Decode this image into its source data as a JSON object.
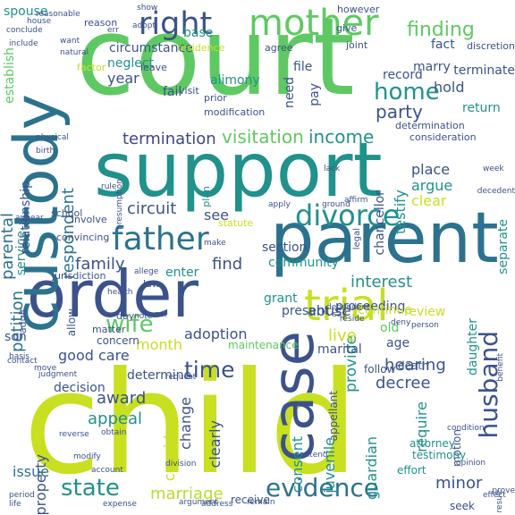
{
  "palette": {
    "p1": "#440154",
    "p2": "#3b528b",
    "p3": "#21918c",
    "p4": "#5ec962",
    "p5": "#b5de2b",
    "p6": "#c8e020",
    "p7": "#2c728e",
    "p8": "#414487"
  },
  "words": [
    {
      "text": "child",
      "color": "#c8e020"
    },
    {
      "text": "court",
      "color": "#5ec962"
    },
    {
      "text": "support",
      "color": "#21918c"
    },
    {
      "text": "parent",
      "color": "#2c728e"
    },
    {
      "text": "order",
      "color": "#3b528b"
    },
    {
      "text": "custody",
      "color": "#2c728e"
    },
    {
      "text": "case",
      "color": "#3b528b"
    },
    {
      "text": "trial",
      "color": "#c8e020"
    },
    {
      "text": "mother",
      "color": "#5ec962"
    },
    {
      "text": "right",
      "color": "#3b528b"
    },
    {
      "text": "father",
      "color": "#2c728e"
    },
    {
      "text": "divorce",
      "color": "#21918c"
    },
    {
      "text": "evidence",
      "color": "#2c728e"
    },
    {
      "text": "husband",
      "color": "#3b528b"
    },
    {
      "text": "wife",
      "color": "#5ec962"
    },
    {
      "text": "home",
      "color": "#21918c"
    },
    {
      "text": "state",
      "color": "#21918c"
    },
    {
      "text": "time",
      "color": "#3b528b"
    },
    {
      "text": "finding",
      "color": "#5ec962"
    },
    {
      "text": "income",
      "color": "#21918c"
    },
    {
      "text": "party",
      "color": "#3b528b"
    },
    {
      "text": "visitation",
      "color": "#5ec962"
    },
    {
      "text": "termination",
      "color": "#414487"
    },
    {
      "text": "petition",
      "color": "#2c728e"
    },
    {
      "text": "parental",
      "color": "#2c728e"
    },
    {
      "text": "respondent",
      "color": "#2c728e"
    },
    {
      "text": "family",
      "color": "#3b528b"
    },
    {
      "text": "marriage",
      "color": "#b5de2b"
    },
    {
      "text": "hearing",
      "color": "#3b528b"
    },
    {
      "text": "award",
      "color": "#3b528b"
    },
    {
      "text": "appeal",
      "color": "#21918c"
    },
    {
      "text": "minor",
      "color": "#3b528b"
    },
    {
      "text": "decree",
      "color": "#3b528b"
    },
    {
      "text": "interest",
      "color": "#21918c"
    },
    {
      "text": "provide",
      "color": "#21918c"
    },
    {
      "text": "find",
      "color": "#3b528b"
    },
    {
      "text": "circuit",
      "color": "#3b528b"
    },
    {
      "text": "live",
      "color": "#c8e020"
    },
    {
      "text": "year",
      "color": "#3b528b"
    },
    {
      "text": "care",
      "color": "#3b528b"
    },
    {
      "text": "good",
      "color": "#3b528b"
    },
    {
      "text": "property",
      "color": "#3b528b"
    },
    {
      "text": "issue",
      "color": "#2c728e"
    },
    {
      "text": "month",
      "color": "#c8e020"
    },
    {
      "text": "adoption",
      "color": "#3b528b"
    },
    {
      "text": "testify",
      "color": "#21918c"
    },
    {
      "text": "abuse",
      "color": "#3b528b"
    },
    {
      "text": "see",
      "color": "#3b528b"
    },
    {
      "text": "hold",
      "color": "#3b528b"
    },
    {
      "text": "place",
      "color": "#3b528b"
    },
    {
      "text": "argue",
      "color": "#21918c"
    },
    {
      "text": "clear",
      "color": "#c8e020"
    },
    {
      "text": "change",
      "color": "#3b528b"
    },
    {
      "text": "clearly",
      "color": "#3b528b"
    },
    {
      "text": "consider",
      "color": "#c8e020"
    },
    {
      "text": "require",
      "color": "#21918c"
    },
    {
      "text": "guardian",
      "color": "#21918c"
    },
    {
      "text": "juvenile",
      "color": "#21918c"
    },
    {
      "text": "consent",
      "color": "#21918c"
    },
    {
      "text": "determine",
      "color": "#3b528b"
    },
    {
      "text": "decision",
      "color": "#3b528b"
    },
    {
      "text": "daughter",
      "color": "#21918c"
    },
    {
      "text": "separate",
      "color": "#21918c"
    },
    {
      "text": "chancellor",
      "color": "#3b528b"
    },
    {
      "text": "service",
      "color": "#21918c"
    },
    {
      "text": "relationship",
      "color": "#3b528b"
    },
    {
      "text": "establish",
      "color": "#5ec962"
    },
    {
      "text": "spouse",
      "color": "#21918c"
    },
    {
      "text": "circumstance",
      "color": "#3b528b"
    },
    {
      "text": "neglect",
      "color": "#21918c"
    },
    {
      "text": "base",
      "color": "#21918c"
    },
    {
      "text": "marry",
      "color": "#3b528b"
    },
    {
      "text": "fact",
      "color": "#3b528b"
    },
    {
      "text": "terminate",
      "color": "#3b528b"
    },
    {
      "text": "return",
      "color": "#21918c"
    },
    {
      "text": "record",
      "color": "#3b528b"
    },
    {
      "text": "fail",
      "color": "#3b528b"
    },
    {
      "text": "alimony",
      "color": "#21918c"
    },
    {
      "text": "file",
      "color": "#3b528b"
    },
    {
      "text": "need",
      "color": "#3b528b"
    },
    {
      "text": "pay",
      "color": "#3b528b"
    },
    {
      "text": "community",
      "color": "#21918c"
    },
    {
      "text": "grant",
      "color": "#21918c"
    },
    {
      "text": "proceeding",
      "color": "#3b528b"
    },
    {
      "text": "continue",
      "color": "#c8e020"
    },
    {
      "text": "review",
      "color": "#c8e020"
    },
    {
      "text": "marital",
      "color": "#3b528b"
    },
    {
      "text": "present",
      "color": "#3b528b"
    },
    {
      "text": "enter",
      "color": "#21918c"
    },
    {
      "text": "section",
      "color": "#3b528b"
    },
    {
      "text": "son",
      "color": "#3b528b"
    },
    {
      "text": "old",
      "color": "#5ec962"
    },
    {
      "text": "age",
      "color": "#3b528b"
    },
    {
      "text": "follow",
      "color": "#3b528b"
    },
    {
      "text": "death",
      "color": "#3b528b"
    },
    {
      "text": "motion",
      "color": "#3b528b"
    },
    {
      "text": "attorney",
      "color": "#21918c"
    },
    {
      "text": "testimony",
      "color": "#21918c"
    },
    {
      "text": "effort",
      "color": "#21918c"
    },
    {
      "text": "receive",
      "color": "#3b528b"
    },
    {
      "text": "seek",
      "color": "#3b528b"
    },
    {
      "text": "allow",
      "color": "#3b528b"
    },
    {
      "text": "concern",
      "color": "#3b528b"
    },
    {
      "text": "maintenance",
      "color": "#5ec962"
    },
    {
      "text": "appellant",
      "color": "#3b528b"
    },
    {
      "text": "statute",
      "color": "#c8e020"
    },
    {
      "text": "plan",
      "color": "#21918c"
    },
    {
      "text": "convincing",
      "color": "#3b528b"
    },
    {
      "text": "school",
      "color": "#3b528b"
    },
    {
      "text": "involve",
      "color": "#3b528b"
    },
    {
      "text": "jurisdiction",
      "color": "#3b528b"
    },
    {
      "text": "adult",
      "color": "#3b528b"
    },
    {
      "text": "matter",
      "color": "#3b528b"
    },
    {
      "text": "day",
      "color": "#3b528b"
    },
    {
      "text": "law",
      "color": "#3b528b"
    },
    {
      "text": "leave",
      "color": "#3b528b"
    },
    {
      "text": "visit",
      "color": "#3b528b"
    },
    {
      "text": "prior",
      "color": "#3b528b"
    },
    {
      "text": "residence",
      "color": "#c8e020"
    },
    {
      "text": "reason",
      "color": "#3b528b"
    },
    {
      "text": "however",
      "color": "#3b528b"
    },
    {
      "text": "give",
      "color": "#3b528b"
    },
    {
      "text": "agree",
      "color": "#3b528b"
    },
    {
      "text": "joint",
      "color": "#3b528b"
    },
    {
      "text": "discretion",
      "color": "#3b528b"
    },
    {
      "text": "determination",
      "color": "#3b528b"
    },
    {
      "text": "consideration",
      "color": "#3b528b"
    },
    {
      "text": "modification",
      "color": "#3b528b"
    },
    {
      "text": "factor",
      "color": "#c8e020"
    },
    {
      "text": "conclude",
      "color": "#3b528b"
    },
    {
      "text": "include",
      "color": "#3b528b"
    },
    {
      "text": "want",
      "color": "#3b528b"
    },
    {
      "text": "natural",
      "color": "#3b528b"
    },
    {
      "text": "physical",
      "color": "#3b528b"
    },
    {
      "text": "birth",
      "color": "#3b528b"
    },
    {
      "text": "rule",
      "color": "#3b528b"
    },
    {
      "text": "presumption",
      "color": "#3b528b"
    },
    {
      "text": "apply",
      "color": "#3b528b"
    },
    {
      "text": "ground",
      "color": "#3b528b"
    },
    {
      "text": "legal",
      "color": "#3b528b"
    },
    {
      "text": "dependent",
      "color": "#3b528b"
    },
    {
      "text": "reside",
      "color": "#3b528b"
    },
    {
      "text": "deny",
      "color": "#3b528b"
    },
    {
      "text": "person",
      "color": "#3b528b"
    },
    {
      "text": "say",
      "color": "#3b528b"
    },
    {
      "text": "set",
      "color": "#3b528b"
    },
    {
      "text": "note",
      "color": "#3b528b"
    },
    {
      "text": "judgment",
      "color": "#3b528b"
    },
    {
      "text": "request",
      "color": "#3b528b"
    },
    {
      "text": "opinion",
      "color": "#3b528b"
    },
    {
      "text": "benefit",
      "color": "#3b528b"
    },
    {
      "text": "account",
      "color": "#3b528b"
    },
    {
      "text": "modify",
      "color": "#3b528b"
    },
    {
      "text": "remain",
      "color": "#3b528b"
    },
    {
      "text": "result",
      "color": "#3b528b"
    },
    {
      "text": "period",
      "color": "#3b528b"
    },
    {
      "text": "life",
      "color": "#3b528b"
    },
    {
      "text": "expense",
      "color": "#3b528b"
    },
    {
      "text": "obtain",
      "color": "#3b528b"
    },
    {
      "text": "reverse",
      "color": "#3b528b"
    },
    {
      "text": "condition",
      "color": "#3b528b"
    },
    {
      "text": "decedent",
      "color": "#3b528b"
    },
    {
      "text": "week",
      "color": "#3b528b"
    },
    {
      "text": "contact",
      "color": "#3b528b"
    },
    {
      "text": "move",
      "color": "#3b528b"
    },
    {
      "text": "prove",
      "color": "#3b528b"
    },
    {
      "text": "show",
      "color": "#3b528b"
    },
    {
      "text": "adopt",
      "color": "#3b528b"
    },
    {
      "text": "err",
      "color": "#3b528b"
    },
    {
      "text": "reasonable",
      "color": "#3b528b"
    },
    {
      "text": "allege",
      "color": "#3b528b"
    },
    {
      "text": "lack",
      "color": "#3b528b"
    },
    {
      "text": "appear",
      "color": "#3b528b"
    },
    {
      "text": "health",
      "color": "#3b528b"
    },
    {
      "text": "affirm",
      "color": "#3b528b"
    },
    {
      "text": "basis",
      "color": "#3b528b"
    },
    {
      "text": "contend",
      "color": "#3b528b"
    },
    {
      "text": "division",
      "color": "#3b528b"
    },
    {
      "text": "argument",
      "color": "#3b528b"
    },
    {
      "text": "house",
      "color": "#3b528b"
    },
    {
      "text": "address",
      "color": "#3b528b"
    },
    {
      "text": "effect",
      "color": "#3b528b"
    },
    {
      "text": "make",
      "color": "#3b528b"
    },
    {
      "text": "ten",
      "color": "#3b528b"
    },
    {
      "text": "sue",
      "color": "#3b528b"
    },
    {
      "text": "bear",
      "color": "#3b528b"
    },
    {
      "text": "tcc",
      "color": "#3b528b"
    },
    {
      "text": "well",
      "color": "#3b528b"
    },
    {
      "text": "§",
      "color": "#3b528b"
    }
  ]
}
